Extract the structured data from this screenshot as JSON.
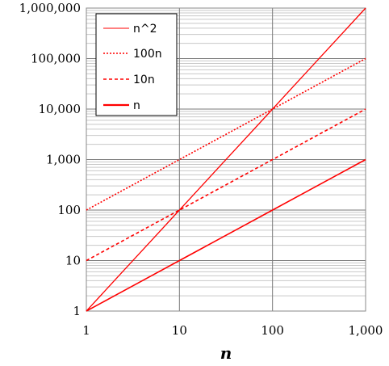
{
  "chart_data": {
    "type": "line",
    "xscale": "log",
    "yscale": "log",
    "xlim": [
      1,
      1000
    ],
    "ylim": [
      1,
      1000000
    ],
    "xlabel": "n",
    "ylabel": "",
    "grid": true,
    "legend_position": "top-left",
    "x_ticks": [
      1,
      10,
      100,
      1000
    ],
    "x_tick_labels": [
      "1",
      "10",
      "100",
      "1,000"
    ],
    "y_ticks": [
      1,
      10,
      100,
      1000,
      10000,
      100000,
      1000000
    ],
    "y_tick_labels": [
      "1",
      "10",
      "100",
      "1,000",
      "10,000",
      "100,000",
      "1,000,000"
    ],
    "x": [
      1,
      2,
      3,
      5,
      10,
      20,
      30,
      50,
      100,
      200,
      300,
      500,
      1000
    ],
    "series": [
      {
        "name": "n^2",
        "style": "solid-thin",
        "color": "#ff0000",
        "values": [
          1,
          4,
          9,
          25,
          100,
          400,
          900,
          2500,
          10000,
          40000,
          90000,
          250000,
          1000000
        ]
      },
      {
        "name": "100n",
        "style": "dotted",
        "color": "#ff0000",
        "values": [
          100,
          200,
          300,
          500,
          1000,
          2000,
          3000,
          5000,
          10000,
          20000,
          30000,
          50000,
          100000
        ]
      },
      {
        "name": "10n",
        "style": "dashed",
        "color": "#ff0000",
        "values": [
          10,
          20,
          30,
          50,
          100,
          200,
          300,
          500,
          1000,
          2000,
          3000,
          5000,
          10000
        ]
      },
      {
        "name": "n",
        "style": "solid-thick",
        "color": "#ff0000",
        "values": [
          1,
          2,
          3,
          5,
          10,
          20,
          30,
          50,
          100,
          200,
          300,
          500,
          1000
        ]
      }
    ]
  }
}
